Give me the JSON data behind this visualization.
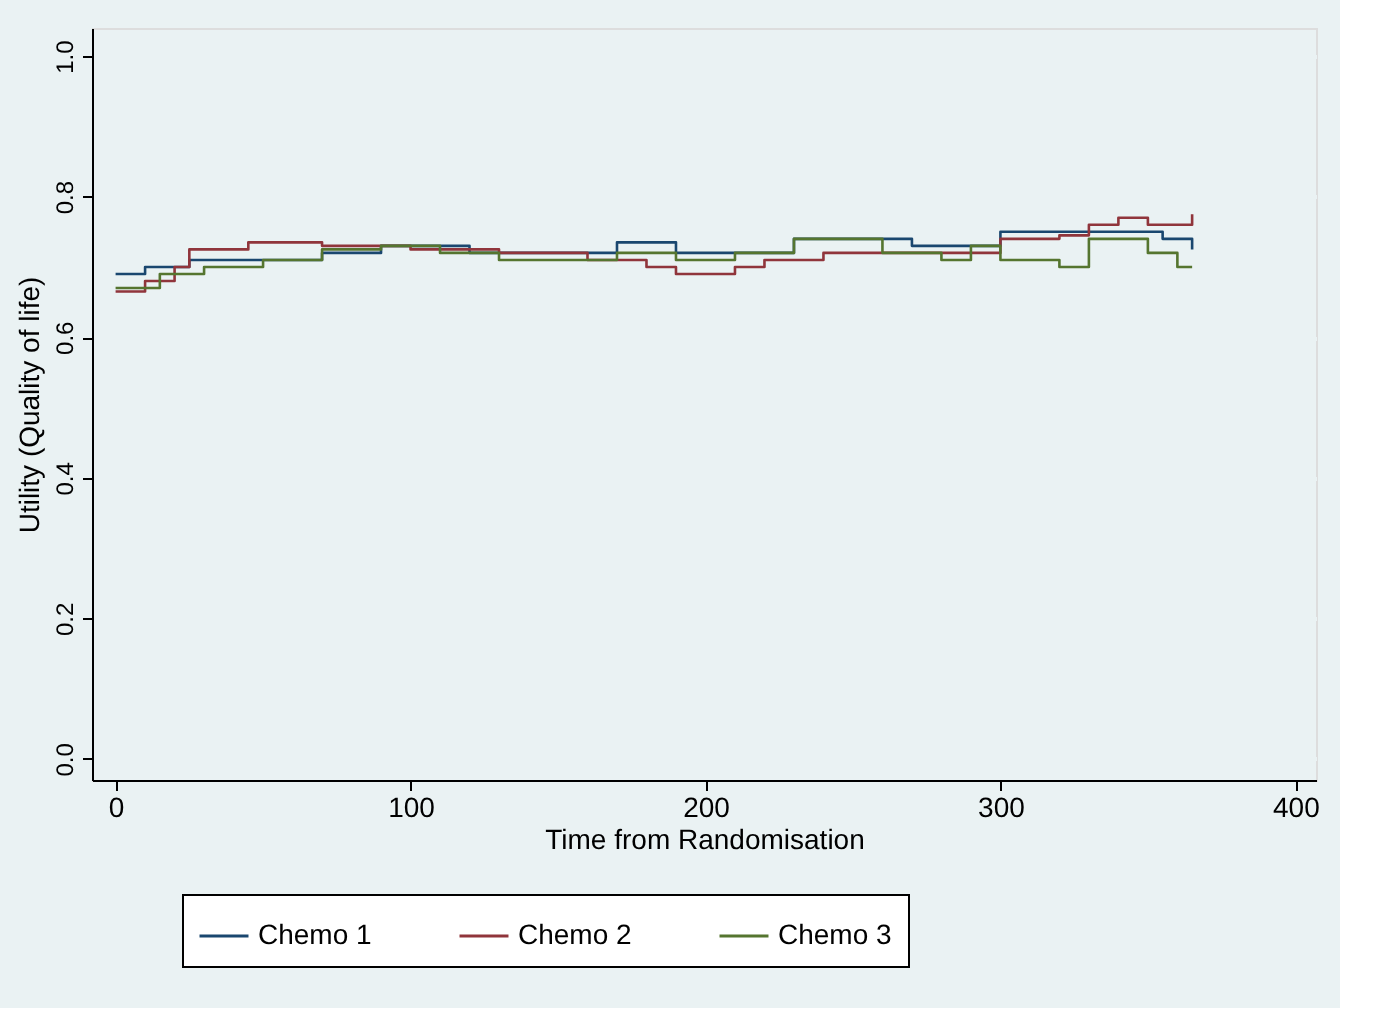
{
  "chart_data": {
    "type": "step",
    "xlabel": "Time from Randomisation",
    "ylabel": "Utility (Quality of life)",
    "xlim": [
      -8,
      407
    ],
    "xticks": [
      0,
      100,
      200,
      300,
      400
    ],
    "ylim": [
      -0.03,
      1.04
    ],
    "yticks": [
      {
        "value": 0,
        "label": "0.0"
      },
      {
        "value": 0.2,
        "label": "0.2"
      },
      {
        "value": 0.4,
        "label": "0.4"
      },
      {
        "value": 0.6,
        "label": "0.6"
      },
      {
        "value": 0.8,
        "label": "0.8"
      },
      {
        "value": 1,
        "label": "1.0"
      }
    ],
    "grid": "y",
    "legend": "bottom",
    "line_style": "solid",
    "marker": "none",
    "series": [
      {
        "name": "Chemo 1",
        "color": "#1a476f",
        "x": [
          0,
          10,
          25,
          50,
          70,
          90,
          120,
          150,
          170,
          190,
          210,
          230,
          250,
          270,
          300,
          320,
          340,
          355,
          365
        ],
        "values": [
          0.69,
          0.7,
          0.71,
          0.71,
          0.72,
          0.73,
          0.72,
          0.72,
          0.735,
          0.72,
          0.72,
          0.74,
          0.74,
          0.73,
          0.75,
          0.75,
          0.75,
          0.74,
          0.725
        ]
      },
      {
        "name": "Chemo 2",
        "color": "#90353b",
        "x": [
          0,
          10,
          20,
          25,
          45,
          70,
          100,
          130,
          160,
          180,
          190,
          210,
          220,
          240,
          260,
          280,
          300,
          320,
          330,
          340,
          350,
          365
        ],
        "values": [
          0.665,
          0.68,
          0.7,
          0.725,
          0.735,
          0.73,
          0.725,
          0.72,
          0.71,
          0.7,
          0.69,
          0.7,
          0.71,
          0.72,
          0.72,
          0.72,
          0.74,
          0.745,
          0.76,
          0.77,
          0.76,
          0.775
        ]
      },
      {
        "name": "Chemo 3",
        "color": "#55752f",
        "x": [
          0,
          15,
          30,
          50,
          70,
          90,
          110,
          130,
          150,
          170,
          190,
          210,
          230,
          245,
          260,
          280,
          290,
          300,
          320,
          330,
          350,
          360,
          365
        ],
        "values": [
          0.67,
          0.69,
          0.7,
          0.71,
          0.725,
          0.73,
          0.72,
          0.71,
          0.71,
          0.72,
          0.71,
          0.72,
          0.74,
          0.74,
          0.72,
          0.71,
          0.73,
          0.71,
          0.7,
          0.74,
          0.72,
          0.7,
          0.7
        ]
      }
    ]
  }
}
